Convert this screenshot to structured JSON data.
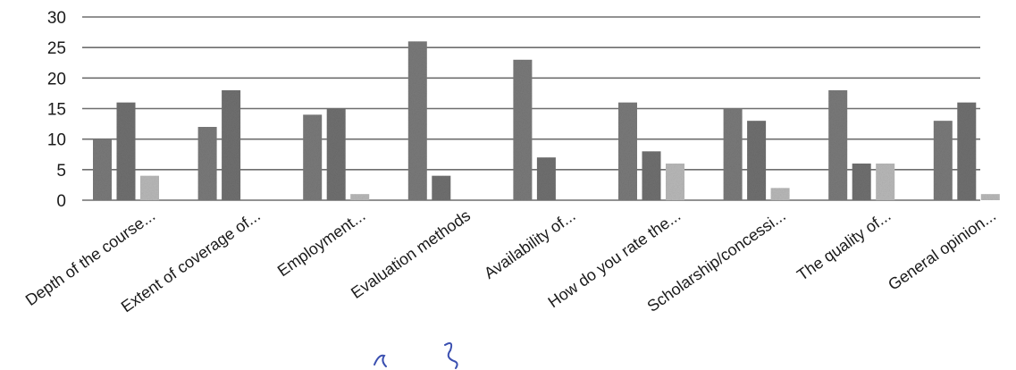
{
  "chart_data": {
    "type": "bar",
    "title": "",
    "xlabel": "",
    "ylabel": "",
    "ylim": [
      0,
      30
    ],
    "yticks": [
      0,
      5,
      10,
      15,
      20,
      25,
      30
    ],
    "grid": true,
    "legend": "none",
    "categories": [
      "Depth of the course...",
      "Extent of coverage of...",
      "Employment...",
      "Evaluation methods",
      "Availability of...",
      "How do you rate the...",
      "Scholarship/concessi...",
      "The quality of...",
      "General opinion..."
    ],
    "series": [
      {
        "values": [
          10,
          12,
          14,
          26,
          23,
          16,
          15,
          18,
          13
        ],
        "color": "#7a7a7a"
      },
      {
        "values": [
          16,
          18,
          15,
          4,
          7,
          8,
          13,
          6,
          16
        ],
        "color": "#707070"
      },
      {
        "values": [
          4,
          0,
          1,
          0,
          0,
          6,
          2,
          6,
          1
        ],
        "color": "#b9b9b9"
      }
    ]
  },
  "colors": {
    "grid": "#6e6e6e",
    "text": "#1a1a1a",
    "ink": "#3a4fb0"
  }
}
